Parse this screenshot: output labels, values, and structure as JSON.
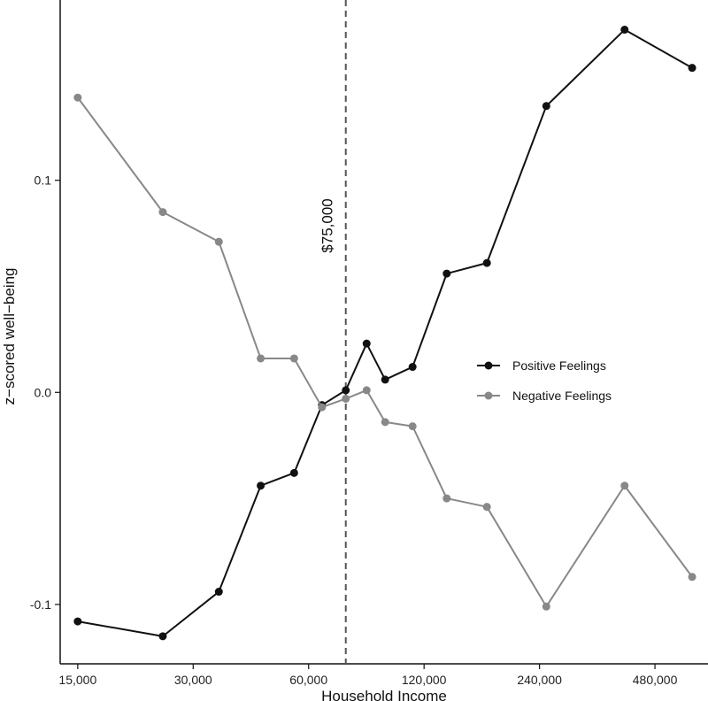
{
  "chart_data": {
    "type": "line",
    "xlabel": "Household Income",
    "ylabel": "z−scored well−being",
    "x_scale": "log",
    "xlim": [
      13500,
      660000
    ],
    "ylim": [
      -0.128,
      0.185
    ],
    "x_ticks": [
      {
        "value": 15000,
        "label": "15,000"
      },
      {
        "value": 30000,
        "label": "30,000"
      },
      {
        "value": 60000,
        "label": "60,000"
      },
      {
        "value": 120000,
        "label": "120,000"
      },
      {
        "value": 240000,
        "label": "240,000"
      },
      {
        "value": 480000,
        "label": "480,000"
      }
    ],
    "y_ticks": [
      {
        "value": -0.1,
        "label": "-0.1"
      },
      {
        "value": 0.0,
        "label": "0.0"
      },
      {
        "value": 0.1,
        "label": "0.1"
      }
    ],
    "grid": false,
    "legend_position": "right",
    "reference_line": {
      "x": 75000,
      "label": "$75,000",
      "style": "dashed"
    },
    "series": [
      {
        "name": "Positive Feelings",
        "color": "#111111",
        "points": [
          {
            "x": 15000,
            "y": -0.108
          },
          {
            "x": 25000,
            "y": -0.115
          },
          {
            "x": 35000,
            "y": -0.094
          },
          {
            "x": 45000,
            "y": -0.044
          },
          {
            "x": 55000,
            "y": -0.038
          },
          {
            "x": 65000,
            "y": -0.006
          },
          {
            "x": 75000,
            "y": 0.001
          },
          {
            "x": 85000,
            "y": 0.023
          },
          {
            "x": 95000,
            "y": 0.006
          },
          {
            "x": 112000,
            "y": 0.012
          },
          {
            "x": 137500,
            "y": 0.056
          },
          {
            "x": 175000,
            "y": 0.061
          },
          {
            "x": 250000,
            "y": 0.135
          },
          {
            "x": 400000,
            "y": 0.171
          },
          {
            "x": 600000,
            "y": 0.153
          }
        ]
      },
      {
        "name": "Negative Feelings",
        "color": "#888888",
        "points": [
          {
            "x": 15000,
            "y": 0.139
          },
          {
            "x": 25000,
            "y": 0.085
          },
          {
            "x": 35000,
            "y": 0.071
          },
          {
            "x": 45000,
            "y": 0.016
          },
          {
            "x": 55000,
            "y": 0.016
          },
          {
            "x": 65000,
            "y": -0.007
          },
          {
            "x": 75000,
            "y": -0.003
          },
          {
            "x": 85000,
            "y": 0.001
          },
          {
            "x": 95000,
            "y": -0.014
          },
          {
            "x": 112000,
            "y": -0.016
          },
          {
            "x": 137500,
            "y": -0.05
          },
          {
            "x": 175000,
            "y": -0.054
          },
          {
            "x": 250000,
            "y": -0.101
          },
          {
            "x": 400000,
            "y": -0.044
          },
          {
            "x": 600000,
            "y": -0.087
          }
        ]
      }
    ]
  }
}
